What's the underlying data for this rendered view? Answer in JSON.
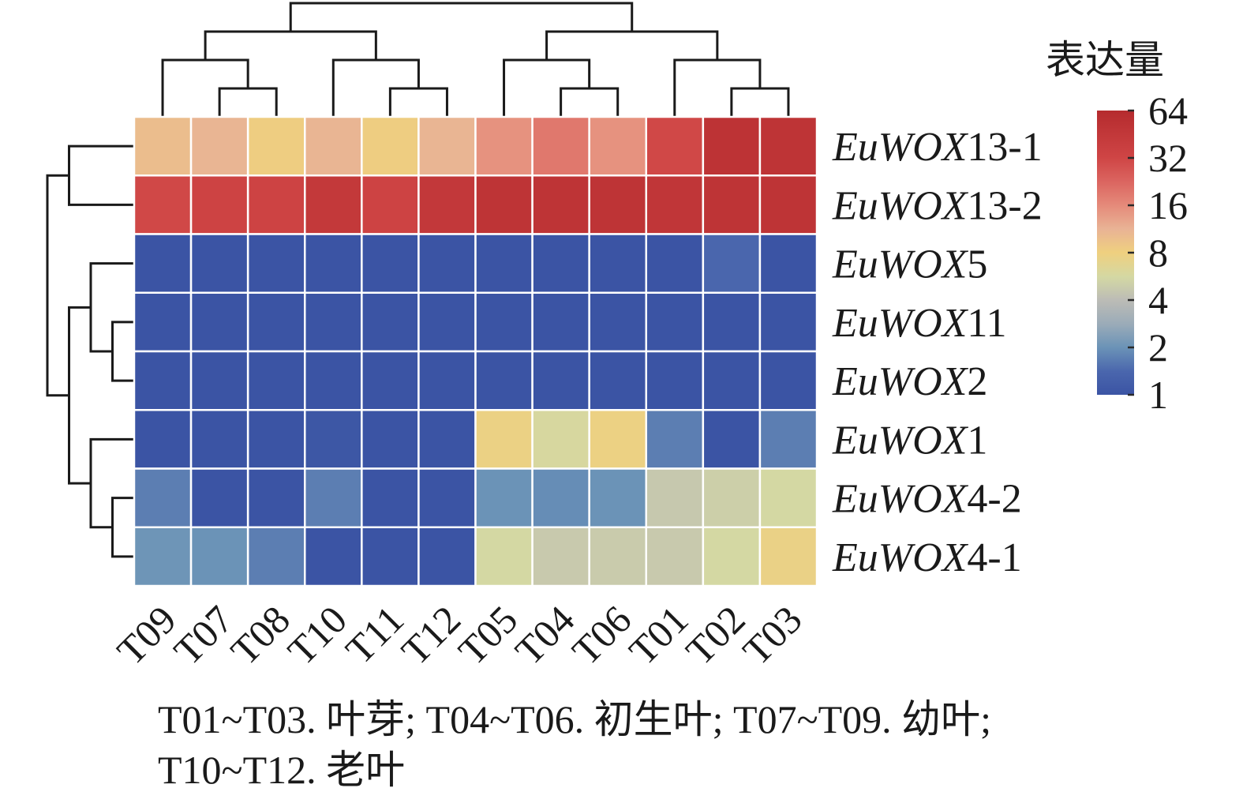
{
  "chart_data": {
    "type": "heatmap",
    "columns": [
      "T09",
      "T07",
      "T08",
      "T10",
      "T11",
      "T12",
      "T05",
      "T04",
      "T06",
      "T01",
      "T02",
      "T03"
    ],
    "rows": [
      {
        "italic": "EuWOX",
        "num": "13-1"
      },
      {
        "italic": "EuWOX",
        "num": "13-2"
      },
      {
        "italic": "EuWOX",
        "num": "5"
      },
      {
        "italic": "EuWOX",
        "num": "11"
      },
      {
        "italic": "EuWOX",
        "num": "2"
      },
      {
        "italic": "EuWOX",
        "num": "1"
      },
      {
        "italic": "EuWOX",
        "num": "4-2"
      },
      {
        "italic": "EuWOX",
        "num": "4-1"
      }
    ],
    "values": [
      [
        10,
        11,
        8.3,
        11,
        8.3,
        11,
        15,
        19,
        15,
        31,
        52,
        50
      ],
      [
        31,
        34,
        34,
        44,
        34,
        45,
        50,
        50,
        50,
        48,
        50,
        50
      ],
      [
        1,
        1,
        1,
        1,
        1,
        1,
        1,
        1,
        1,
        1,
        1.4,
        1
      ],
      [
        1,
        1,
        1,
        1,
        1,
        1,
        1,
        1,
        1,
        1,
        1,
        1
      ],
      [
        1,
        1,
        1,
        1,
        1,
        1,
        1,
        1,
        1,
        1,
        1,
        1
      ],
      [
        1,
        1,
        1,
        1.05,
        1,
        1,
        7.6,
        5.8,
        7.7,
        1.7,
        1,
        1.7
      ],
      [
        1.7,
        1,
        1,
        1.7,
        1,
        1,
        2,
        1.9,
        2,
        4.6,
        5,
        5.6
      ],
      [
        2.05,
        2,
        1.7,
        1,
        1,
        1,
        5.6,
        4.7,
        4.8,
        4.7,
        5.6,
        7.5
      ]
    ],
    "color_scale": [
      {
        "value": 1,
        "color": "#3b54a4"
      },
      {
        "value": 1.4,
        "color": "#4a66ad"
      },
      {
        "value": 2,
        "color": "#6b93b7"
      },
      {
        "value": 2.8,
        "color": "#9aabb8"
      },
      {
        "value": 4,
        "color": "#bcbcb6"
      },
      {
        "value": 5.6,
        "color": "#d4d8a3"
      },
      {
        "value": 8,
        "color": "#efd07f"
      },
      {
        "value": 11.3,
        "color": "#e9b395"
      },
      {
        "value": 16,
        "color": "#e58a7a"
      },
      {
        "value": 22.6,
        "color": "#db6560"
      },
      {
        "value": 32,
        "color": "#cf4545"
      },
      {
        "value": 64,
        "color": "#b52b2e"
      }
    ],
    "legend": {
      "title": "表达量",
      "ticks": [
        64,
        32,
        16,
        8,
        4,
        2,
        1
      ],
      "limits": [
        1,
        64
      ]
    },
    "col_dendrogram": {
      "h": 4,
      "c": [
        {
          "h": 3,
          "c": [
            {
              "h": 2,
              "c": [
                0,
                {
                  "h": 1,
                  "c": [
                    1,
                    2
                  ]
                }
              ]
            },
            {
              "h": 2,
              "c": [
                3,
                {
                  "h": 1,
                  "c": [
                    4,
                    5
                  ]
                }
              ]
            }
          ]
        },
        {
          "h": 3,
          "c": [
            {
              "h": 2,
              "c": [
                6,
                {
                  "h": 1,
                  "c": [
                    7,
                    8
                  ]
                }
              ]
            },
            {
              "h": 2,
              "c": [
                9,
                {
                  "h": 1,
                  "c": [
                    10,
                    11
                  ]
                }
              ]
            }
          ]
        }
      ]
    },
    "row_dendrogram": {
      "h": 4,
      "c": [
        {
          "h": 3,
          "c": [
            0,
            1
          ]
        },
        {
          "h": 3,
          "c": [
            {
              "h": 2,
              "c": [
                2,
                {
                  "h": 1,
                  "c": [
                    3,
                    4
                  ]
                }
              ]
            },
            {
              "h": 2,
              "c": [
                5,
                {
                  "h": 1,
                  "c": [
                    6,
                    7
                  ]
                }
              ]
            }
          ]
        }
      ]
    }
  },
  "caption": {
    "lines": [
      "T01~T03. 叶芽; T04~T06. 初生叶; T07~T09. 幼叶;",
      "T10~T12. 老叶"
    ]
  }
}
